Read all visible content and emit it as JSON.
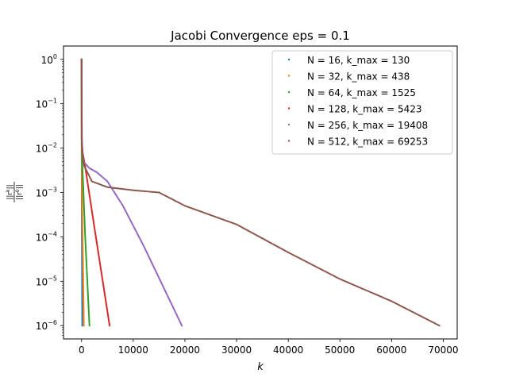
{
  "chart_data": {
    "type": "scatter",
    "title": "Jacobi Convergence eps = 0.1",
    "xlabel": "k",
    "ylabel": "||r^k|| / ||r^0||",
    "ylabel_num": "||r",
    "ylabel_num_sup": "k",
    "ylabel_num_end": "||",
    "ylabel_den": "||r",
    "ylabel_den_sup": "0",
    "ylabel_den_end": "||",
    "xlim": [
      -3500,
      72700
    ],
    "ylim_log10": [
      -6.3,
      0.3
    ],
    "yscale": "log",
    "grid": false,
    "legend_placement": "top-right",
    "x_ticks": [
      {
        "value": 0,
        "label": "0"
      },
      {
        "value": 10000,
        "label": "10000"
      },
      {
        "value": 20000,
        "label": "20000"
      },
      {
        "value": 30000,
        "label": "30000"
      },
      {
        "value": 40000,
        "label": "40000"
      },
      {
        "value": 50000,
        "label": "50000"
      },
      {
        "value": 60000,
        "label": "60000"
      },
      {
        "value": 70000,
        "label": "70000"
      }
    ],
    "y_ticks": [
      {
        "exp": 0,
        "mantissa": "10",
        "sup": "0"
      },
      {
        "exp": -1,
        "mantissa": "10",
        "sup": "−1"
      },
      {
        "exp": -2,
        "mantissa": "10",
        "sup": "−2"
      },
      {
        "exp": -3,
        "mantissa": "10",
        "sup": "−3"
      },
      {
        "exp": -4,
        "mantissa": "10",
        "sup": "−4"
      },
      {
        "exp": -5,
        "mantissa": "10",
        "sup": "−5"
      },
      {
        "exp": -6,
        "mantissa": "10",
        "sup": "−6"
      }
    ],
    "series": [
      {
        "name": "N = 16, k_max = 130",
        "color": "#1f77b4",
        "points": [
          [
            0,
            0
          ],
          [
            5,
            -1.3
          ],
          [
            20,
            -2.2
          ],
          [
            40,
            -3.2
          ],
          [
            80,
            -4.6
          ],
          [
            130,
            -6
          ]
        ]
      },
      {
        "name": "N = 32, k_max = 438",
        "color": "#ff7f0e",
        "points": [
          [
            0,
            0
          ],
          [
            10,
            -1.5
          ],
          [
            40,
            -2.3
          ],
          [
            100,
            -3.1
          ],
          [
            250,
            -4.4
          ],
          [
            438,
            -6
          ]
        ]
      },
      {
        "name": "N = 64, k_max = 1525",
        "color": "#2ca02c",
        "points": [
          [
            0,
            0
          ],
          [
            20,
            -1.6
          ],
          [
            100,
            -2.3
          ],
          [
            300,
            -2.8
          ],
          [
            700,
            -4.0
          ],
          [
            1525,
            -6
          ]
        ]
      },
      {
        "name": "N = 128, k_max = 5423",
        "color": "#d62728",
        "points": [
          [
            0,
            0
          ],
          [
            30,
            -1.8
          ],
          [
            200,
            -2.1
          ],
          [
            800,
            -2.5
          ],
          [
            2500,
            -3.8
          ],
          [
            5423,
            -6
          ]
        ]
      },
      {
        "name": "N = 256, k_max = 19408",
        "color": "#9467bd",
        "points": [
          [
            0,
            0
          ],
          [
            50,
            -1.9
          ],
          [
            300,
            -2.3
          ],
          [
            1500,
            -2.45
          ],
          [
            3000,
            -2.55
          ],
          [
            5000,
            -2.75
          ],
          [
            8000,
            -3.3
          ],
          [
            12000,
            -4.2
          ],
          [
            19408,
            -6
          ]
        ]
      },
      {
        "name": "N = 512, k_max = 69253",
        "color": "#8c564b",
        "points": [
          [
            0,
            0
          ],
          [
            60,
            -2.0
          ],
          [
            500,
            -2.4
          ],
          [
            2000,
            -2.75
          ],
          [
            5000,
            -2.88
          ],
          [
            10000,
            -2.95
          ],
          [
            15000,
            -3.0
          ],
          [
            20000,
            -3.3
          ],
          [
            30000,
            -3.72
          ],
          [
            40000,
            -4.35
          ],
          [
            50000,
            -4.95
          ],
          [
            60000,
            -5.45
          ],
          [
            69253,
            -6
          ]
        ]
      }
    ]
  }
}
